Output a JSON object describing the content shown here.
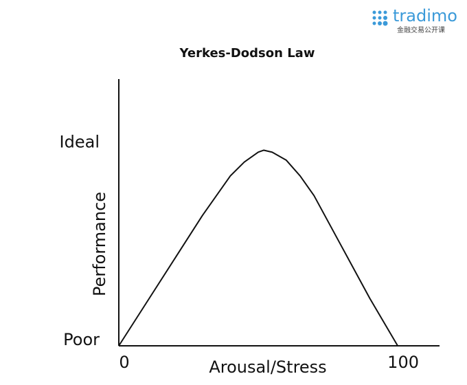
{
  "logo": {
    "name": "tradimo",
    "tagline": "金融交易公开课"
  },
  "chart_data": {
    "type": "line",
    "title": "Yerkes-Dodson Law",
    "x_label": "Arousal/Stress",
    "y_label": "Performance",
    "x": [
      0,
      10,
      20,
      30,
      40,
      45,
      50,
      52,
      55,
      60,
      65,
      70,
      80,
      90,
      100
    ],
    "values": [
      0,
      22,
      44,
      66,
      86,
      93,
      98,
      99,
      98,
      94,
      86,
      76,
      50,
      24,
      0
    ],
    "color": "#111111",
    "xlim": [
      0,
      115
    ],
    "xticks": [
      0,
      100
    ],
    "ylim": [
      0,
      135
    ],
    "yticks": [
      {
        "value": 0,
        "label": "Poor"
      },
      {
        "value": 100,
        "label": "Ideal"
      }
    ],
    "grid": false
  }
}
